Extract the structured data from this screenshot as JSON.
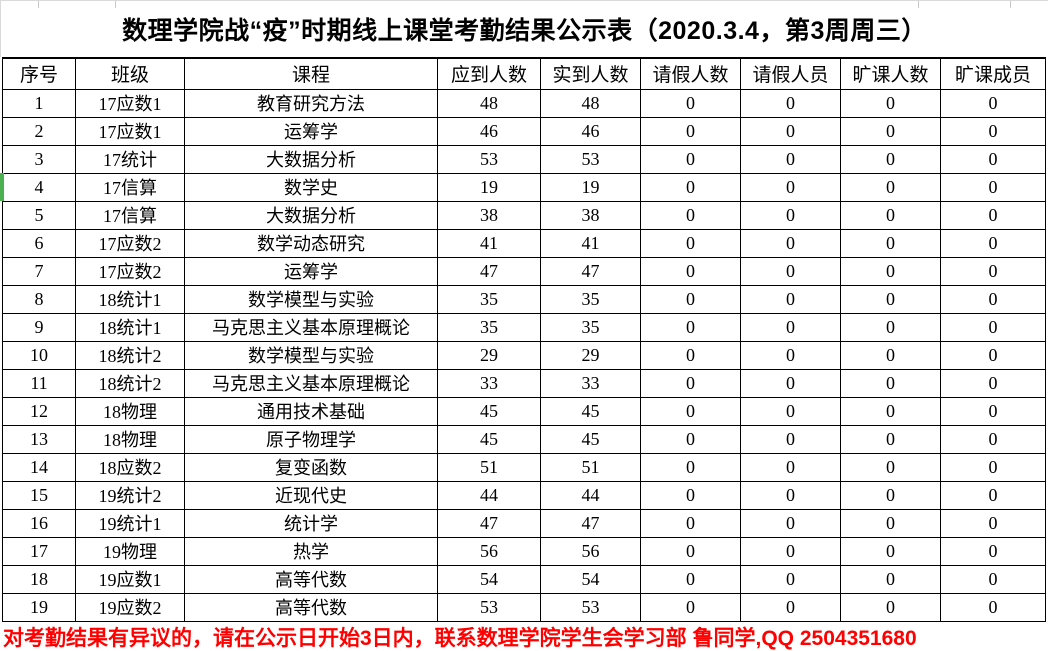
{
  "title": "数理学院战“疫”时期线上课堂考勤结果公示表（2020.3.4，第3周周三）",
  "table": {
    "headers": [
      "序号",
      "班级",
      "课程",
      "应到人数",
      "实到人数",
      "请假人数",
      "请假人员",
      "旷课人数",
      "旷课成员"
    ],
    "rows": [
      [
        "1",
        "17应数1",
        "教育研究方法",
        "48",
        "48",
        "0",
        "0",
        "0",
        "0"
      ],
      [
        "2",
        "17应数1",
        "运筹学",
        "46",
        "46",
        "0",
        "0",
        "0",
        "0"
      ],
      [
        "3",
        "17统计",
        "大数据分析",
        "53",
        "53",
        "0",
        "0",
        "0",
        "0"
      ],
      [
        "4",
        "17信算",
        "数学史",
        "19",
        "19",
        "0",
        "0",
        "0",
        "0"
      ],
      [
        "5",
        "17信算",
        "大数据分析",
        "38",
        "38",
        "0",
        "0",
        "0",
        "0"
      ],
      [
        "6",
        "17应数2",
        "数学动态研究",
        "41",
        "41",
        "0",
        "0",
        "0",
        "0"
      ],
      [
        "7",
        "17应数2",
        "运筹学",
        "47",
        "47",
        "0",
        "0",
        "0",
        "0"
      ],
      [
        "8",
        "18统计1",
        "数学模型与实验",
        "35",
        "35",
        "0",
        "0",
        "0",
        "0"
      ],
      [
        "9",
        "18统计1",
        "马克思主义基本原理概论",
        "35",
        "35",
        "0",
        "0",
        "0",
        "0"
      ],
      [
        "10",
        "18统计2",
        "数学模型与实验",
        "29",
        "29",
        "0",
        "0",
        "0",
        "0"
      ],
      [
        "11",
        "18统计2",
        "马克思主义基本原理概论",
        "33",
        "33",
        "0",
        "0",
        "0",
        "0"
      ],
      [
        "12",
        "18物理",
        "通用技术基础",
        "45",
        "45",
        "0",
        "0",
        "0",
        "0"
      ],
      [
        "13",
        "18物理",
        "原子物理学",
        "45",
        "45",
        "0",
        "0",
        "0",
        "0"
      ],
      [
        "14",
        "18应数2",
        "复变函数",
        "51",
        "51",
        "0",
        "0",
        "0",
        "0"
      ],
      [
        "15",
        "19统计2",
        "近现代史",
        "44",
        "44",
        "0",
        "0",
        "0",
        "0"
      ],
      [
        "16",
        "19统计1",
        "统计学",
        "47",
        "47",
        "0",
        "0",
        "0",
        "0"
      ],
      [
        "17",
        "19物理",
        "热学",
        "56",
        "56",
        "0",
        "0",
        "0",
        "0"
      ],
      [
        "18",
        "19应数1",
        "高等代数",
        "54",
        "54",
        "0",
        "0",
        "0",
        "0"
      ],
      [
        "19",
        "19应数2",
        "高等代数",
        "53",
        "53",
        "0",
        "0",
        "0",
        "0"
      ]
    ]
  },
  "footer": {
    "notice": "对考勤结果有异议的，请在公示日开始3日内，联系数理学院学生会学习部 鲁同学,QQ 2504351680"
  },
  "colors": {
    "grid_line": "#000000",
    "faint_grid_line": "#d9d9d9",
    "notice_red": "#ff0000",
    "row_marker_green": "#4caf50",
    "background": "#ffffff",
    "text": "#000000"
  }
}
